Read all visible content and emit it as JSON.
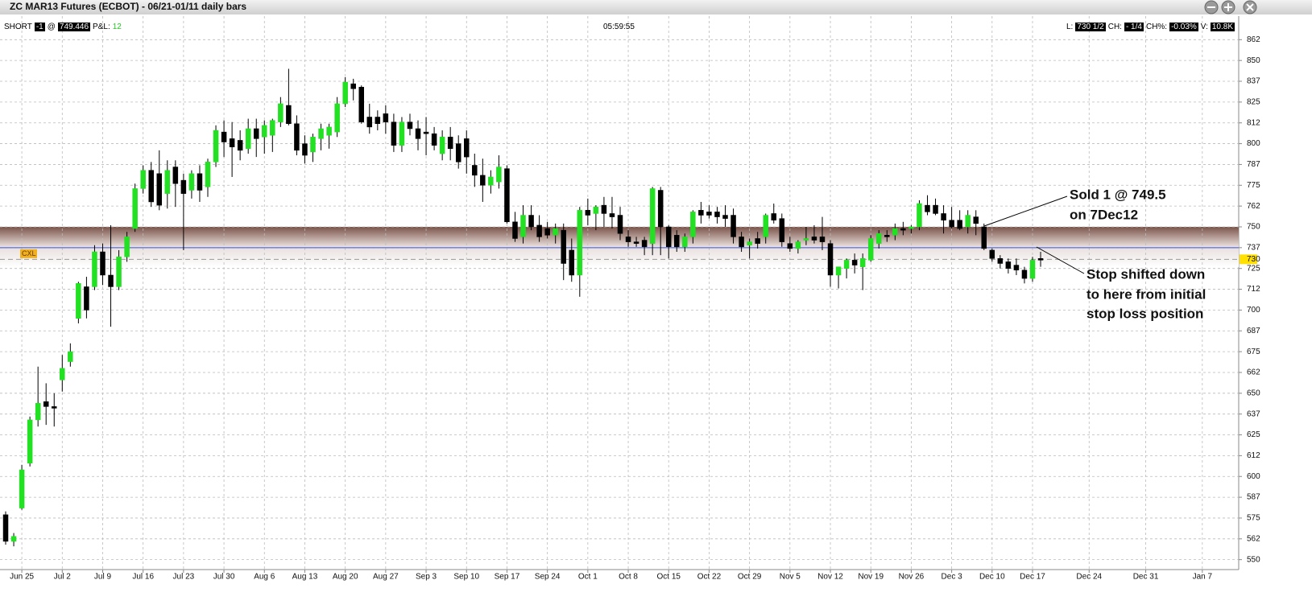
{
  "window": {
    "title": "ZC MAR13 Futures (ECBOT) - 06/21-01/11 daily bars"
  },
  "status": {
    "position": "SHORT",
    "quantity": "-1",
    "at": "@",
    "avg_price": "749.446",
    "pnl_label": "P&L:",
    "pnl": "12",
    "time": "05:59:55",
    "last_label": "L:",
    "last": "730 1/2",
    "change_label": "CH:",
    "change": "- 1/4",
    "change_pct_label": "CH%:",
    "change_pct": "-0.03%",
    "volume_label": "V:",
    "volume": "10.8K"
  },
  "chart_data": {
    "type": "candlestick",
    "up_color": "#22e022",
    "down_color": "#000000",
    "grid": true,
    "categories": [
      null,
      null,
      "Jun 25",
      null,
      null,
      null,
      null,
      "Jul 2",
      null,
      null,
      null,
      null,
      "Jul 9",
      null,
      null,
      null,
      null,
      "Jul 16",
      null,
      null,
      null,
      null,
      "Jul 23",
      null,
      null,
      null,
      null,
      "Jul 30",
      null,
      null,
      null,
      null,
      "Aug 6",
      null,
      null,
      null,
      null,
      "Aug 13",
      null,
      null,
      null,
      null,
      "Aug 20",
      null,
      null,
      null,
      null,
      "Aug 27",
      null,
      null,
      null,
      null,
      "Sep 3",
      null,
      null,
      null,
      null,
      "Sep 10",
      null,
      null,
      null,
      null,
      "Sep 17",
      null,
      null,
      null,
      null,
      "Sep 24",
      null,
      null,
      null,
      null,
      "Oct 1",
      null,
      null,
      null,
      null,
      "Oct 8",
      null,
      null,
      null,
      null,
      "Oct 15",
      null,
      null,
      null,
      null,
      "Oct 22",
      null,
      null,
      null,
      null,
      "Oct 29",
      null,
      null,
      null,
      null,
      "Nov 5",
      null,
      null,
      null,
      null,
      "Nov 12",
      null,
      null,
      null,
      null,
      "Nov 19",
      null,
      null,
      null,
      null,
      "Nov 26",
      null,
      null,
      null,
      null,
      "Dec 3",
      null,
      null,
      null,
      null,
      "Dec 10",
      null,
      null,
      null,
      null,
      "Dec 17",
      null,
      null,
      null,
      null,
      null,
      null,
      "Dec 24",
      null,
      null,
      null,
      null,
      null,
      null,
      "Dec 31",
      null,
      null,
      null,
      null,
      null,
      null,
      "Jan 7",
      null,
      null,
      null,
      null
    ],
    "open": [
      577,
      561,
      581,
      608,
      634,
      645,
      642,
      658,
      669,
      695,
      714,
      714,
      735,
      721,
      714,
      732,
      749,
      773,
      784,
      782,
      770,
      786,
      778,
      772,
      782,
      774,
      789,
      807,
      803,
      802,
      797,
      809,
      804,
      805,
      813,
      823,
      812,
      800,
      795,
      803,
      805,
      807,
      824,
      836,
      834,
      816,
      816,
      818,
      813,
      799,
      813,
      809,
      807,
      806,
      794,
      804,
      800,
      803,
      787,
      781,
      775,
      777,
      785,
      753,
      744,
      757,
      751,
      749,
      745,
      748,
      736,
      721,
      760,
      758,
      763,
      758,
      757,
      744,
      741,
      742,
      740,
      772,
      750,
      745,
      738,
      744,
      760,
      759,
      759,
      757,
      757,
      744,
      739,
      743,
      744,
      758,
      755,
      740,
      737,
      742,
      744,
      744,
      740,
      721,
      725,
      730,
      726,
      730,
      740,
      745,
      745,
      749,
      749,
      750,
      763,
      763,
      758,
      754,
      754,
      750,
      756,
      750,
      736,
      731,
      729,
      727,
      724,
      719,
      731,
      null,
      null,
      null,
      null,
      null,
      null,
      null,
      null,
      null,
      null,
      null,
      null,
      null,
      null,
      null,
      null,
      null,
      null,
      null,
      null,
      null,
      null,
      null,
      null
    ],
    "high": [
      579,
      566,
      607,
      636,
      666,
      656,
      650,
      673,
      680,
      717,
      720,
      739,
      740,
      751,
      736,
      747,
      776,
      787,
      789,
      796,
      790,
      790,
      782,
      784,
      787,
      791,
      811,
      814,
      813,
      808,
      815,
      815,
      814,
      815,
      828,
      845,
      817,
      805,
      806,
      812,
      812,
      828,
      840,
      839,
      835,
      824,
      820,
      823,
      818,
      816,
      818,
      814,
      816,
      810,
      808,
      810,
      805,
      808,
      794,
      791,
      784,
      793,
      787,
      759,
      763,
      763,
      757,
      753,
      752,
      752,
      743,
      762,
      767,
      763,
      768,
      768,
      762,
      748,
      744,
      744,
      774,
      774,
      751,
      748,
      746,
      760,
      765,
      763,
      762,
      763,
      761,
      747,
      743,
      747,
      758,
      764,
      758,
      744,
      742,
      750,
      751,
      756,
      742,
      726,
      731,
      734,
      734,
      745,
      748,
      748,
      752,
      753,
      751,
      766,
      769,
      767,
      763,
      762,
      760,
      760,
      760,
      752,
      737,
      733,
      731,
      731,
      726,
      732,
      735,
      null,
      null,
      null,
      null,
      null,
      null,
      null,
      null,
      null,
      null,
      null,
      null,
      null,
      null,
      null,
      null,
      null,
      null,
      null,
      null,
      null,
      null,
      null,
      null
    ],
    "low": [
      559,
      558,
      580,
      606,
      630,
      631,
      630,
      651,
      666,
      692,
      695,
      712,
      715,
      690,
      712,
      729,
      747,
      770,
      762,
      760,
      761,
      762,
      736,
      767,
      765,
      768,
      786,
      792,
      780,
      790,
      794,
      792,
      794,
      795,
      810,
      811,
      793,
      788,
      789,
      796,
      797,
      804,
      822,
      826,
      812,
      806,
      808,
      806,
      795,
      795,
      805,
      796,
      793,
      796,
      790,
      790,
      785,
      782,
      774,
      765,
      770,
      773,
      752,
      741,
      740,
      748,
      741,
      743,
      740,
      718,
      717,
      708,
      751,
      748,
      750,
      749,
      742,
      738,
      738,
      733,
      733,
      733,
      731,
      735,
      735,
      740,
      752,
      755,
      752,
      750,
      740,
      735,
      731,
      737,
      740,
      752,
      738,
      735,
      734,
      739,
      740,
      736,
      714,
      713,
      719,
      722,
      712,
      729,
      737,
      741,
      742,
      745,
      746,
      748,
      757,
      757,
      746,
      749,
      748,
      746,
      745,
      736,
      729,
      725,
      722,
      721,
      716,
      717,
      726,
      null,
      null,
      null,
      null,
      null,
      null,
      null,
      null,
      null,
      null,
      null,
      null,
      null,
      null,
      null,
      null,
      null,
      null,
      null,
      null,
      null,
      null,
      null,
      null
    ],
    "close": [
      561,
      564,
      604,
      634,
      644,
      642,
      641,
      665,
      675,
      716,
      700,
      735,
      721,
      714,
      732,
      744,
      773,
      784,
      765,
      763,
      784,
      776,
      770,
      782,
      772,
      789,
      808,
      801,
      798,
      796,
      809,
      803,
      811,
      814,
      824,
      812,
      796,
      793,
      804,
      809,
      810,
      824,
      837,
      833,
      813,
      810,
      812,
      813,
      799,
      813,
      809,
      803,
      806,
      799,
      804,
      797,
      789,
      792,
      781,
      775,
      780,
      786,
      753,
      743,
      757,
      750,
      744,
      745,
      749,
      728,
      721,
      760,
      757,
      762,
      758,
      756,
      746,
      741,
      740,
      738,
      773,
      750,
      738,
      738,
      744,
      759,
      757,
      757,
      756,
      755,
      744,
      738,
      741,
      740,
      757,
      754,
      741,
      737,
      741,
      743,
      742,
      741,
      721,
      726,
      730,
      727,
      731,
      743,
      746,
      744,
      749,
      748,
      750,
      764,
      759,
      758,
      754,
      750,
      749,
      757,
      752,
      737,
      731,
      728,
      725,
      724,
      719,
      730,
      730,
      null,
      null,
      null,
      null,
      null,
      null,
      null,
      null,
      null,
      null,
      null,
      null,
      null,
      null,
      null,
      null,
      null,
      null,
      null,
      null,
      null,
      null,
      null,
      null
    ],
    "ylim": [
      545,
      867
    ],
    "yticks": [
      550,
      {
        "value": 562.5,
        "label": "562"
      },
      575,
      {
        "value": 587.5,
        "label": "587"
      },
      600,
      {
        "value": 612.5,
        "label": "612"
      },
      625,
      {
        "value": 637.5,
        "label": "637"
      },
      650,
      {
        "value": 662.5,
        "label": "662"
      },
      675,
      {
        "value": 687.5,
        "label": "687"
      },
      700,
      {
        "value": 712.5,
        "label": "712"
      },
      725,
      {
        "value": 737.5,
        "label": "737"
      },
      750,
      {
        "value": 762.5,
        "label": "762"
      },
      775,
      {
        "value": 787.5,
        "label": "787"
      },
      800,
      {
        "value": 812.5,
        "label": "812"
      },
      825,
      {
        "value": 837.5,
        "label": "837"
      },
      850,
      {
        "value": 862.5,
        "label": "862"
      }
    ],
    "zone": {
      "top": 750,
      "bottom": 737.5
    },
    "stop_level": 737.5,
    "stop_tag": "CXL",
    "last_price": {
      "value": 730.5,
      "label": "730"
    },
    "annotations": [
      {
        "lines": [
          "Sold 1 @ 749.5",
          "on 7Dec12"
        ]
      },
      {
        "lines": [
          "Stop shifted down",
          "to here from initial",
          "stop loss position"
        ]
      }
    ]
  }
}
